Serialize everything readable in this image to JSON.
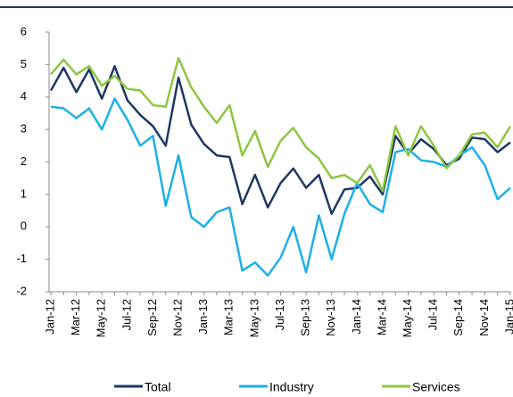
{
  "chart_data": {
    "type": "line",
    "categories": [
      "Jan-12",
      null,
      "Mar-12",
      null,
      "May-12",
      null,
      "Jul-12",
      null,
      "Sep-12",
      null,
      "Nov-12",
      null,
      "Jan-13",
      null,
      "Mar-13",
      null,
      "May-13",
      null,
      "Jul-13",
      null,
      "Sep-13",
      null,
      "Nov-13",
      null,
      "Jan-14",
      null,
      "Mar-14",
      null,
      "May-14",
      null,
      "Jul-14",
      null,
      "Sep-14",
      null,
      "Nov-14",
      null,
      "Jan-15"
    ],
    "series": [
      {
        "name": "Total",
        "color": "#1f3864",
        "values": [
          4.2,
          4.9,
          4.15,
          4.85,
          3.95,
          4.95,
          3.9,
          3.45,
          3.1,
          2.5,
          4.6,
          3.15,
          2.55,
          2.2,
          2.15,
          0.7,
          1.6,
          0.6,
          1.35,
          1.8,
          1.2,
          1.6,
          0.4,
          1.15,
          1.2,
          1.55,
          1.0,
          2.8,
          2.25,
          2.7,
          2.4,
          1.9,
          2.1,
          2.75,
          2.7,
          2.3,
          2.6
        ]
      },
      {
        "name": "Industry",
        "color": "#1cb0e8",
        "values": [
          3.7,
          3.65,
          3.35,
          3.65,
          3.0,
          3.95,
          3.3,
          2.5,
          2.8,
          0.65,
          2.2,
          0.3,
          0.0,
          0.45,
          0.6,
          -1.35,
          -1.1,
          -1.5,
          -0.95,
          0.0,
          -1.4,
          0.35,
          -1.0,
          0.4,
          1.35,
          0.7,
          0.45,
          2.3,
          2.4,
          2.05,
          2.0,
          1.85,
          2.2,
          2.45,
          1.9,
          0.85,
          1.2
        ]
      },
      {
        "name": "Services",
        "color": "#8dc63f",
        "values": [
          4.7,
          5.15,
          4.7,
          4.95,
          4.35,
          4.65,
          4.25,
          4.2,
          3.75,
          3.7,
          5.2,
          4.3,
          3.7,
          3.2,
          3.75,
          2.2,
          2.95,
          1.85,
          2.65,
          3.05,
          2.45,
          2.1,
          1.5,
          1.6,
          1.35,
          1.9,
          1.1,
          3.1,
          2.2,
          3.1,
          2.5,
          1.8,
          2.2,
          2.85,
          2.9,
          2.45,
          3.1
        ]
      }
    ],
    "ylim": [
      -2,
      6
    ],
    "yticks": [
      -2,
      -1,
      0,
      1,
      2,
      3,
      4,
      5,
      6
    ],
    "grid": false,
    "legend": "bottom"
  }
}
